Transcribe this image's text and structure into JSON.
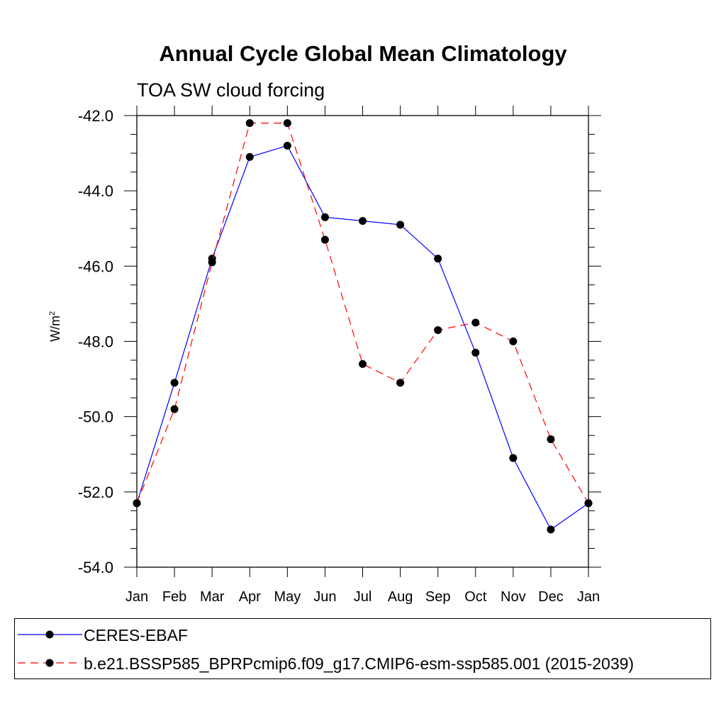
{
  "chart_data": {
    "type": "line",
    "title": "Annual Cycle Global Mean Climatology",
    "subtitle": "TOA SW cloud forcing",
    "ylabel": "W/m",
    "ylabel_sup": "2",
    "categories": [
      "Jan",
      "Feb",
      "Mar",
      "Apr",
      "May",
      "Jun",
      "Jul",
      "Aug",
      "Sep",
      "Oct",
      "Nov",
      "Dec",
      "Jan"
    ],
    "ylim": [
      -54.0,
      -42.0
    ],
    "yticks": [
      "-42.0",
      "-44.0",
      "-46.0",
      "-48.0",
      "-50.0",
      "-52.0",
      "-54.0"
    ],
    "grid": false,
    "legend_position": "bottom",
    "series": [
      {
        "name": "CERES-EBAF",
        "color": "#0000ff",
        "dash": "solid",
        "values": [
          -52.3,
          -49.1,
          -45.8,
          -43.1,
          -42.8,
          -44.7,
          -44.8,
          -44.9,
          -45.8,
          -48.3,
          -51.1,
          -53.0,
          -52.3
        ]
      },
      {
        "name": "b.e21.BSSP585_BPRPcmip6.f09_g17.CMIP6-esm-ssp585.001 (2015-2039)",
        "color": "#ff0000",
        "dash": "dashed",
        "values": [
          -52.3,
          -49.8,
          -45.9,
          -42.2,
          -42.2,
          -45.3,
          -48.6,
          -49.1,
          -47.7,
          -47.5,
          -48.0,
          -50.6,
          -52.3
        ]
      }
    ]
  }
}
